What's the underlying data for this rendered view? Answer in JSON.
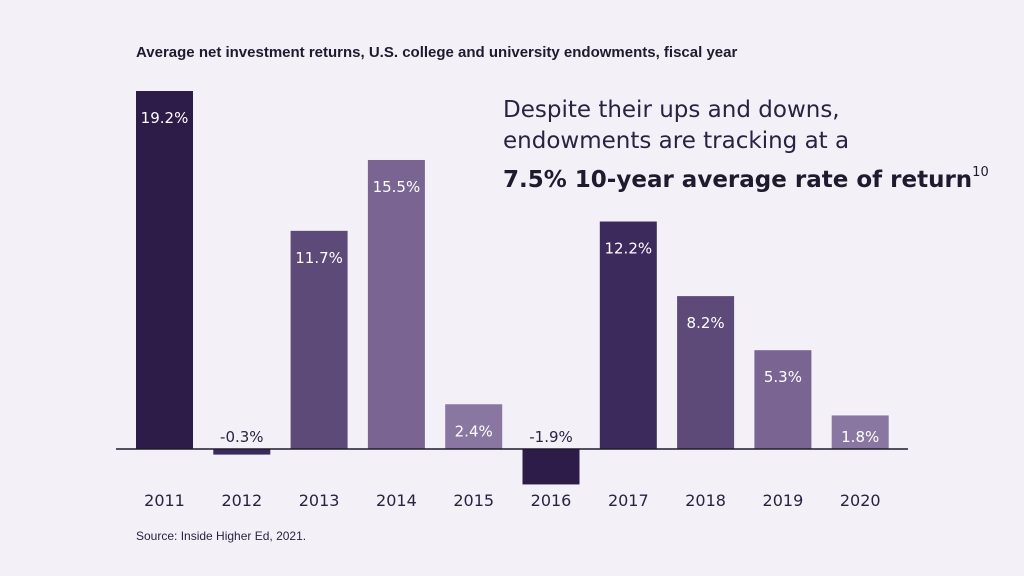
{
  "chart_data": {
    "type": "bar",
    "title": "Average net investment returns, U.S. college and university endowments, fiscal year",
    "xlabel": "",
    "ylabel": "",
    "categories": [
      "2011",
      "2012",
      "2013",
      "2014",
      "2015",
      "2016",
      "2017",
      "2018",
      "2019",
      "2020"
    ],
    "values": [
      19.2,
      -0.3,
      11.7,
      15.5,
      2.4,
      -1.9,
      12.2,
      8.2,
      5.3,
      1.8
    ],
    "data_labels": [
      "19.2%",
      "-0.3%",
      "11.7%",
      "15.5%",
      "2.4%",
      "-1.9%",
      "12.2%",
      "8.2%",
      "5.3%",
      "1.8%"
    ],
    "bar_colors": [
      "#2d1b48",
      "#3d2a5c",
      "#5e4a78",
      "#7a6592",
      "#8a77a1",
      "#2d1b48",
      "#3d2a5c",
      "#5e4a78",
      "#7a6592",
      "#8a77a1"
    ],
    "ylim": [
      -1.9,
      19.2
    ],
    "grid": false,
    "legend": "none"
  },
  "callout": {
    "line1": "Despite their ups and downs,",
    "line2": "endowments are tracking at a",
    "line3": "7.5% 10-year average rate of return",
    "footnote": "10"
  },
  "source": "Source: Inside Higher Ed, 2021.",
  "colors": {
    "background": "#f3f0f7",
    "text": "#1f1a2e",
    "axis": "#1f1a2e",
    "label_on_bar": "#ffffff",
    "label_off_bar": "#2a2340"
  }
}
